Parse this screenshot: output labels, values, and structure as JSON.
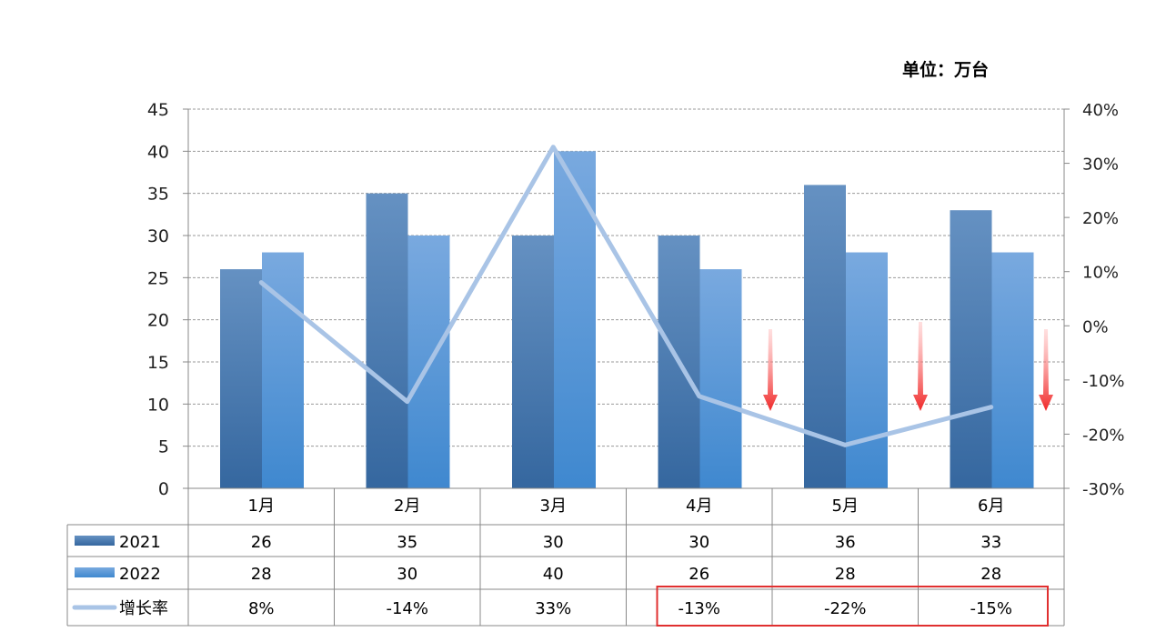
{
  "unit_label": "单位：万台",
  "chart_data": {
    "type": "bar",
    "categories": [
      "1月",
      "2月",
      "3月",
      "4月",
      "5月",
      "6月"
    ],
    "series": [
      {
        "name": "2021",
        "type": "bar",
        "values": [
          26,
          35,
          30,
          30,
          36,
          33
        ],
        "color": "#3E6FA7"
      },
      {
        "name": "2022",
        "type": "bar",
        "values": [
          28,
          30,
          40,
          26,
          28,
          28
        ],
        "color": "#4B8FD6"
      },
      {
        "name": "增长率",
        "type": "line",
        "axis": "right",
        "values": [
          8,
          -14,
          33,
          -13,
          -22,
          -15
        ],
        "color": "#A9C4E6"
      }
    ],
    "left_axis": {
      "min": 0,
      "max": 45,
      "step": 5,
      "ticks": [
        "0",
        "5",
        "10",
        "15",
        "20",
        "25",
        "30",
        "35",
        "40",
        "45"
      ]
    },
    "right_axis": {
      "min": -30,
      "max": 40,
      "step": 10,
      "ticks": [
        "-30%",
        "-20%",
        "-10%",
        "0%",
        "10%",
        "20%",
        "30%",
        "40%"
      ]
    },
    "growth_labels": [
      "8%",
      "-14%",
      "33%",
      "-13%",
      "-22%",
      "-15%"
    ],
    "grid": true,
    "highlight": {
      "color": "#E03030",
      "categories": [
        "4月",
        "5月",
        "6月"
      ]
    },
    "arrows": {
      "color": "#F03A3A",
      "count": 3
    }
  }
}
